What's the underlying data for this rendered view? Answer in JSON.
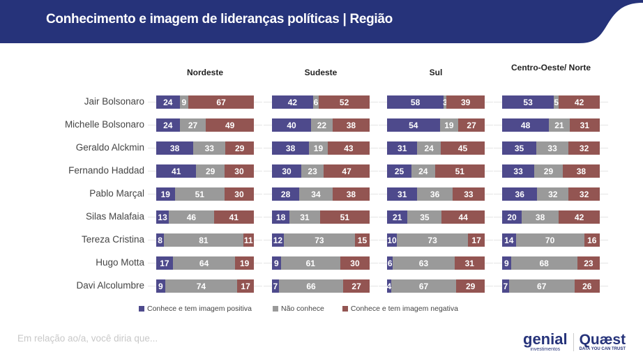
{
  "header": {
    "title": "Conhecimento e imagem de lideranças políticas | Região"
  },
  "colors": {
    "header": "#26337a",
    "positive": "#4e4a8c",
    "unknown": "#9a9a9a",
    "negative": "#935552"
  },
  "chart_data": {
    "type": "bar",
    "stacked": true,
    "orientation": "horizontal",
    "categories": [
      "Jair Bolsonaro",
      "Michelle Bolsonaro",
      "Geraldo Alckmin",
      "Fernando Haddad",
      "Pablo Marçal",
      "Silas Malafaia",
      "Tereza Cristina",
      "Hugo Motta",
      "Davi Alcolumbre"
    ],
    "legend": [
      "Conhece e tem imagem positiva",
      "Não conhece",
      "Conhece e tem imagem negativa"
    ],
    "legend_position": "bottom",
    "panels": [
      {
        "region": "Nordeste",
        "values": [
          [
            24,
            9,
            67
          ],
          [
            24,
            27,
            49
          ],
          [
            38,
            33,
            29
          ],
          [
            41,
            29,
            30
          ],
          [
            19,
            51,
            30
          ],
          [
            13,
            46,
            41
          ],
          [
            8,
            81,
            11
          ],
          [
            17,
            64,
            19
          ],
          [
            9,
            74,
            17
          ]
        ]
      },
      {
        "region": "Sudeste",
        "values": [
          [
            42,
            6,
            52
          ],
          [
            40,
            22,
            38
          ],
          [
            38,
            19,
            43
          ],
          [
            30,
            23,
            47
          ],
          [
            28,
            34,
            38
          ],
          [
            18,
            31,
            51
          ],
          [
            12,
            73,
            15
          ],
          [
            9,
            61,
            30
          ],
          [
            7,
            66,
            27
          ]
        ]
      },
      {
        "region": "Sul",
        "values": [
          [
            58,
            3,
            39
          ],
          [
            54,
            19,
            27
          ],
          [
            31,
            24,
            45
          ],
          [
            25,
            24,
            51
          ],
          [
            31,
            36,
            33
          ],
          [
            21,
            35,
            44
          ],
          [
            10,
            73,
            17
          ],
          [
            6,
            63,
            31
          ],
          [
            4,
            67,
            29
          ]
        ]
      },
      {
        "region": "Centro-Oeste/ Norte",
        "values": [
          [
            53,
            5,
            42
          ],
          [
            48,
            21,
            31
          ],
          [
            35,
            33,
            32
          ],
          [
            33,
            29,
            38
          ],
          [
            36,
            32,
            32
          ],
          [
            20,
            38,
            42
          ],
          [
            14,
            70,
            16
          ],
          [
            9,
            68,
            23
          ],
          [
            7,
            67,
            26
          ]
        ]
      }
    ]
  },
  "footer": {
    "text": "Em relação ao/a, você diria que..."
  },
  "logos": {
    "genial": "genial",
    "genial_sub": "investimentos",
    "quaest": "Quæst",
    "quaest_sub": "DATA YOU CAN TRUST"
  }
}
